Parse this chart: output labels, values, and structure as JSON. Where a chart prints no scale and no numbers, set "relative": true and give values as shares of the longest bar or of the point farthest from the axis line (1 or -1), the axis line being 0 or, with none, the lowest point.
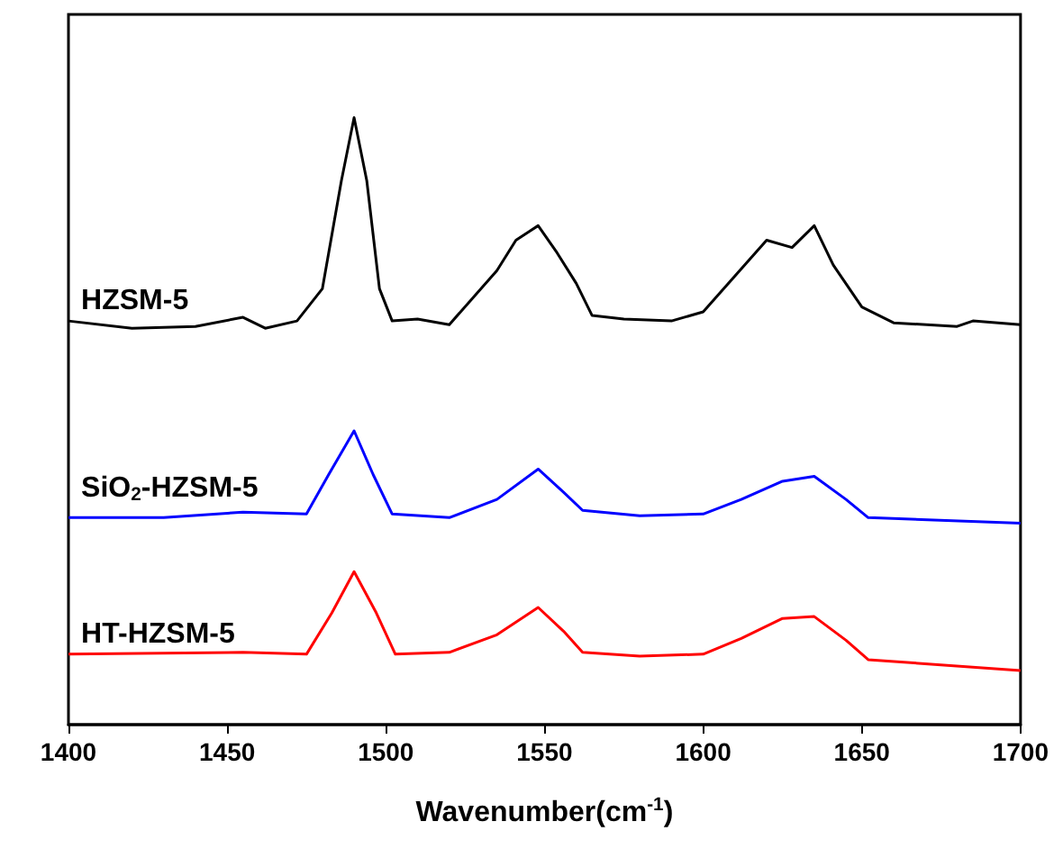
{
  "chart_data": {
    "type": "line",
    "relative": true,
    "xlabel": "Wavenumber(cm$^{-1}$)",
    "xlim": [
      1400,
      1700
    ],
    "xticks": [
      1400,
      1450,
      1500,
      1550,
      1600,
      1650,
      1700
    ],
    "grid": false,
    "legend": false,
    "marker": "none",
    "line_style": "solid",
    "series": [
      {
        "name": "HZSM-5",
        "color": "#000000",
        "x": [
          1400,
          1420,
          1440,
          1455,
          1462,
          1472,
          1480,
          1486,
          1490,
          1494,
          1498,
          1502,
          1510,
          1520,
          1535,
          1541,
          1548,
          1554,
          1560,
          1565,
          1575,
          1590,
          1600,
          1610,
          1620,
          1628,
          1635,
          1641,
          1650,
          1660,
          1680,
          1685,
          1700
        ],
        "values": [
          0.665,
          0.653,
          0.656,
          0.671,
          0.653,
          0.665,
          0.718,
          0.896,
          1.0,
          0.896,
          0.718,
          0.665,
          0.668,
          0.659,
          0.748,
          0.798,
          0.822,
          0.777,
          0.727,
          0.674,
          0.668,
          0.665,
          0.68,
          0.739,
          0.798,
          0.786,
          0.822,
          0.757,
          0.688,
          0.662,
          0.656,
          0.665,
          0.659
        ]
      },
      {
        "name": "SiO$_{2}$-HZSM-5",
        "color": "#0000ff",
        "x": [
          1400,
          1430,
          1455,
          1475,
          1482,
          1490,
          1496,
          1502,
          1520,
          1535,
          1548,
          1556,
          1562,
          1580,
          1600,
          1612,
          1625,
          1635,
          1645,
          1652,
          1700
        ],
        "values": [
          0.341,
          0.341,
          0.35,
          0.347,
          0.412,
          0.484,
          0.412,
          0.347,
          0.341,
          0.371,
          0.421,
          0.383,
          0.353,
          0.344,
          0.347,
          0.371,
          0.401,
          0.409,
          0.371,
          0.341,
          0.332
        ]
      },
      {
        "name": "HT-HZSM-5",
        "color": "#ff0000",
        "x": [
          1400,
          1455,
          1475,
          1483,
          1490,
          1497,
          1503,
          1520,
          1535,
          1548,
          1556,
          1562,
          1580,
          1600,
          1612,
          1625,
          1635,
          1645,
          1652,
          1700
        ],
        "values": [
          0.116,
          0.119,
          0.116,
          0.184,
          0.252,
          0.184,
          0.116,
          0.119,
          0.148,
          0.193,
          0.154,
          0.119,
          0.113,
          0.116,
          0.142,
          0.175,
          0.178,
          0.139,
          0.107,
          0.089
        ]
      }
    ]
  }
}
